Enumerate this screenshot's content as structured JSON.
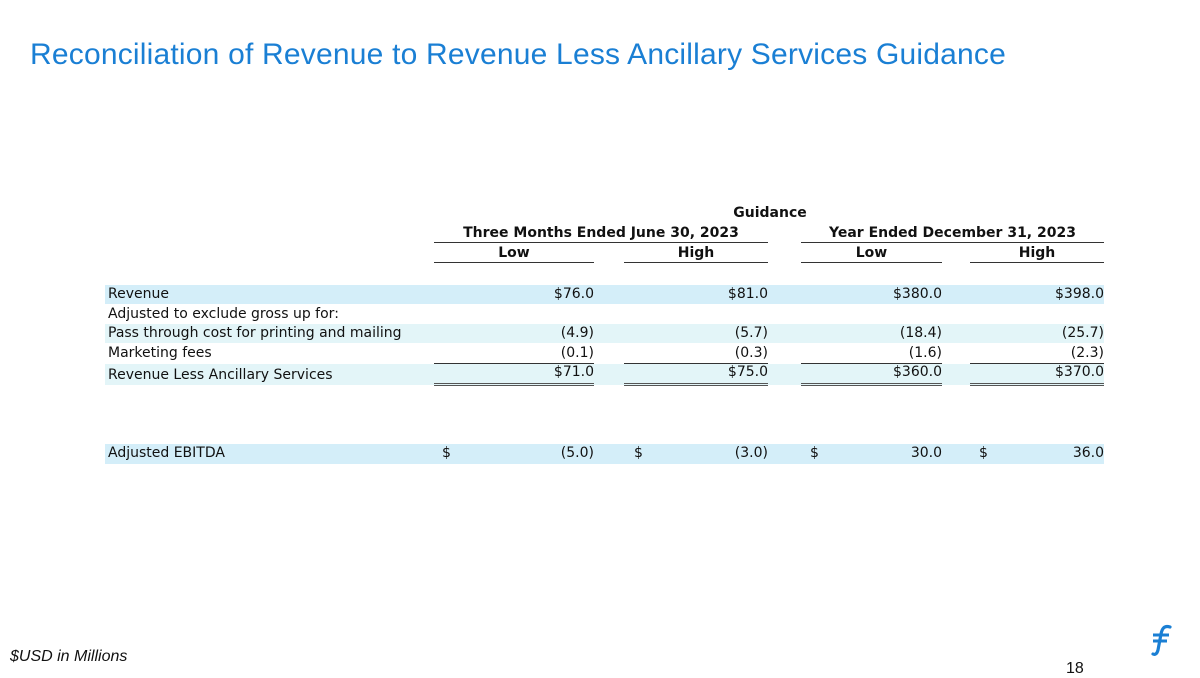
{
  "title": "Reconciliation of Revenue to Revenue Less Ancillary Services Guidance",
  "header": {
    "guidance": "Guidance",
    "period1": "Three Months Ended June 30, 2023",
    "period2": "Year Ended December 31, 2023",
    "low": "Low",
    "high": "High"
  },
  "rows": [
    {
      "label": "Revenue",
      "values": [
        "$76.0",
        "$81.0",
        "$380.0",
        "$398.0"
      ]
    },
    {
      "label": "Adjusted to exclude gross up for:",
      "values": [
        "",
        "",
        "",
        ""
      ]
    },
    {
      "label": "Pass through cost for printing and mailing",
      "values": [
        "(4.9)",
        "(5.7)",
        "(18.4)",
        "(25.7)"
      ]
    },
    {
      "label": "Marketing fees",
      "values": [
        "(0.1)",
        "(0.3)",
        "(1.6)",
        "(2.3)"
      ]
    },
    {
      "label": "Revenue Less Ancillary Services",
      "values": [
        "$71.0",
        "$75.0",
        "$360.0",
        "$370.0"
      ]
    }
  ],
  "ebitda": {
    "label": "Adjusted EBITDA",
    "currency": "$",
    "values": [
      "(5.0)",
      "(3.0)",
      "30.0",
      "36.0"
    ]
  },
  "footnote": "$USD in Millions",
  "page_number": "18",
  "logo": "f"
}
